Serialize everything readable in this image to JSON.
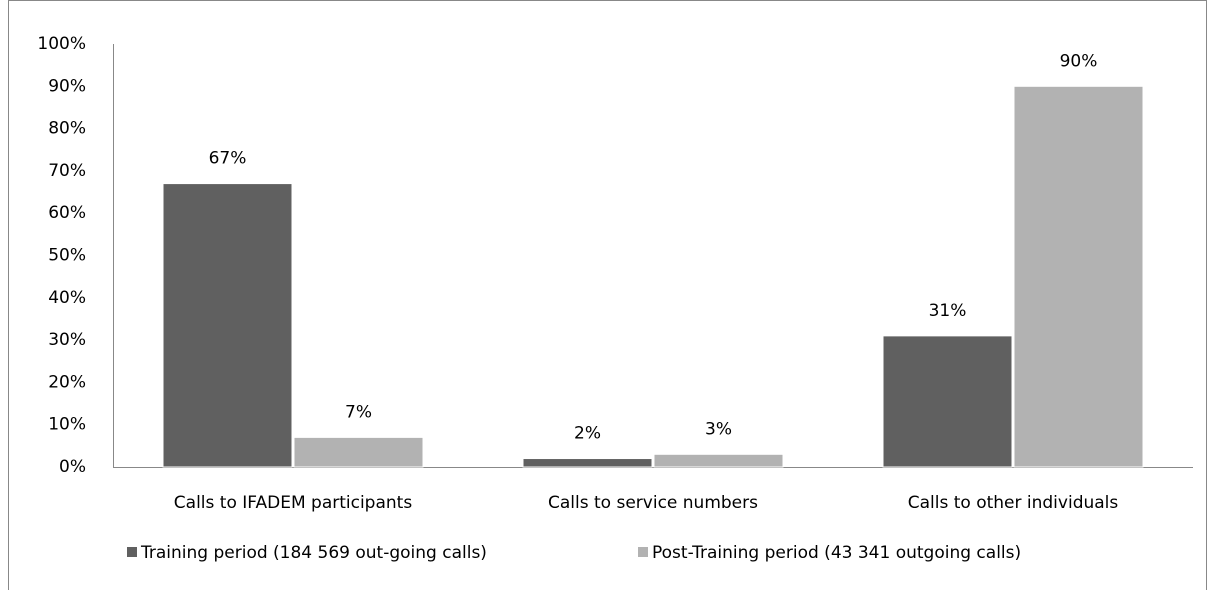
{
  "chart_data": {
    "type": "bar",
    "categories": [
      "Calls to IFADEM participants",
      "Calls to service numbers",
      "Calls to other individuals"
    ],
    "series": [
      {
        "name": "Training period (184 569 out-going  calls)",
        "color": "#606060",
        "values": [
          67,
          2,
          31
        ],
        "value_labels": [
          "67%",
          "2%",
          "31%"
        ]
      },
      {
        "name": "Post-Training period (43 341 outgoing calls)",
        "color": "#b2b2b2",
        "values": [
          7,
          3,
          90
        ],
        "value_labels": [
          "7%",
          "3%",
          "90%"
        ]
      }
    ],
    "ylim": [
      0,
      100
    ],
    "yticks": [
      {
        "value": 0,
        "label": "0%"
      },
      {
        "value": 10,
        "label": "10%"
      },
      {
        "value": 20,
        "label": "20%"
      },
      {
        "value": 30,
        "label": "30%"
      },
      {
        "value": 40,
        "label": "40%"
      },
      {
        "value": 50,
        "label": "50%"
      },
      {
        "value": 60,
        "label": "60%"
      },
      {
        "value": 70,
        "label": "70%"
      },
      {
        "value": 80,
        "label": "80%"
      },
      {
        "value": 90,
        "label": "90%"
      },
      {
        "value": 100,
        "label": "100%"
      }
    ],
    "grid": false,
    "legend": "bottom"
  }
}
